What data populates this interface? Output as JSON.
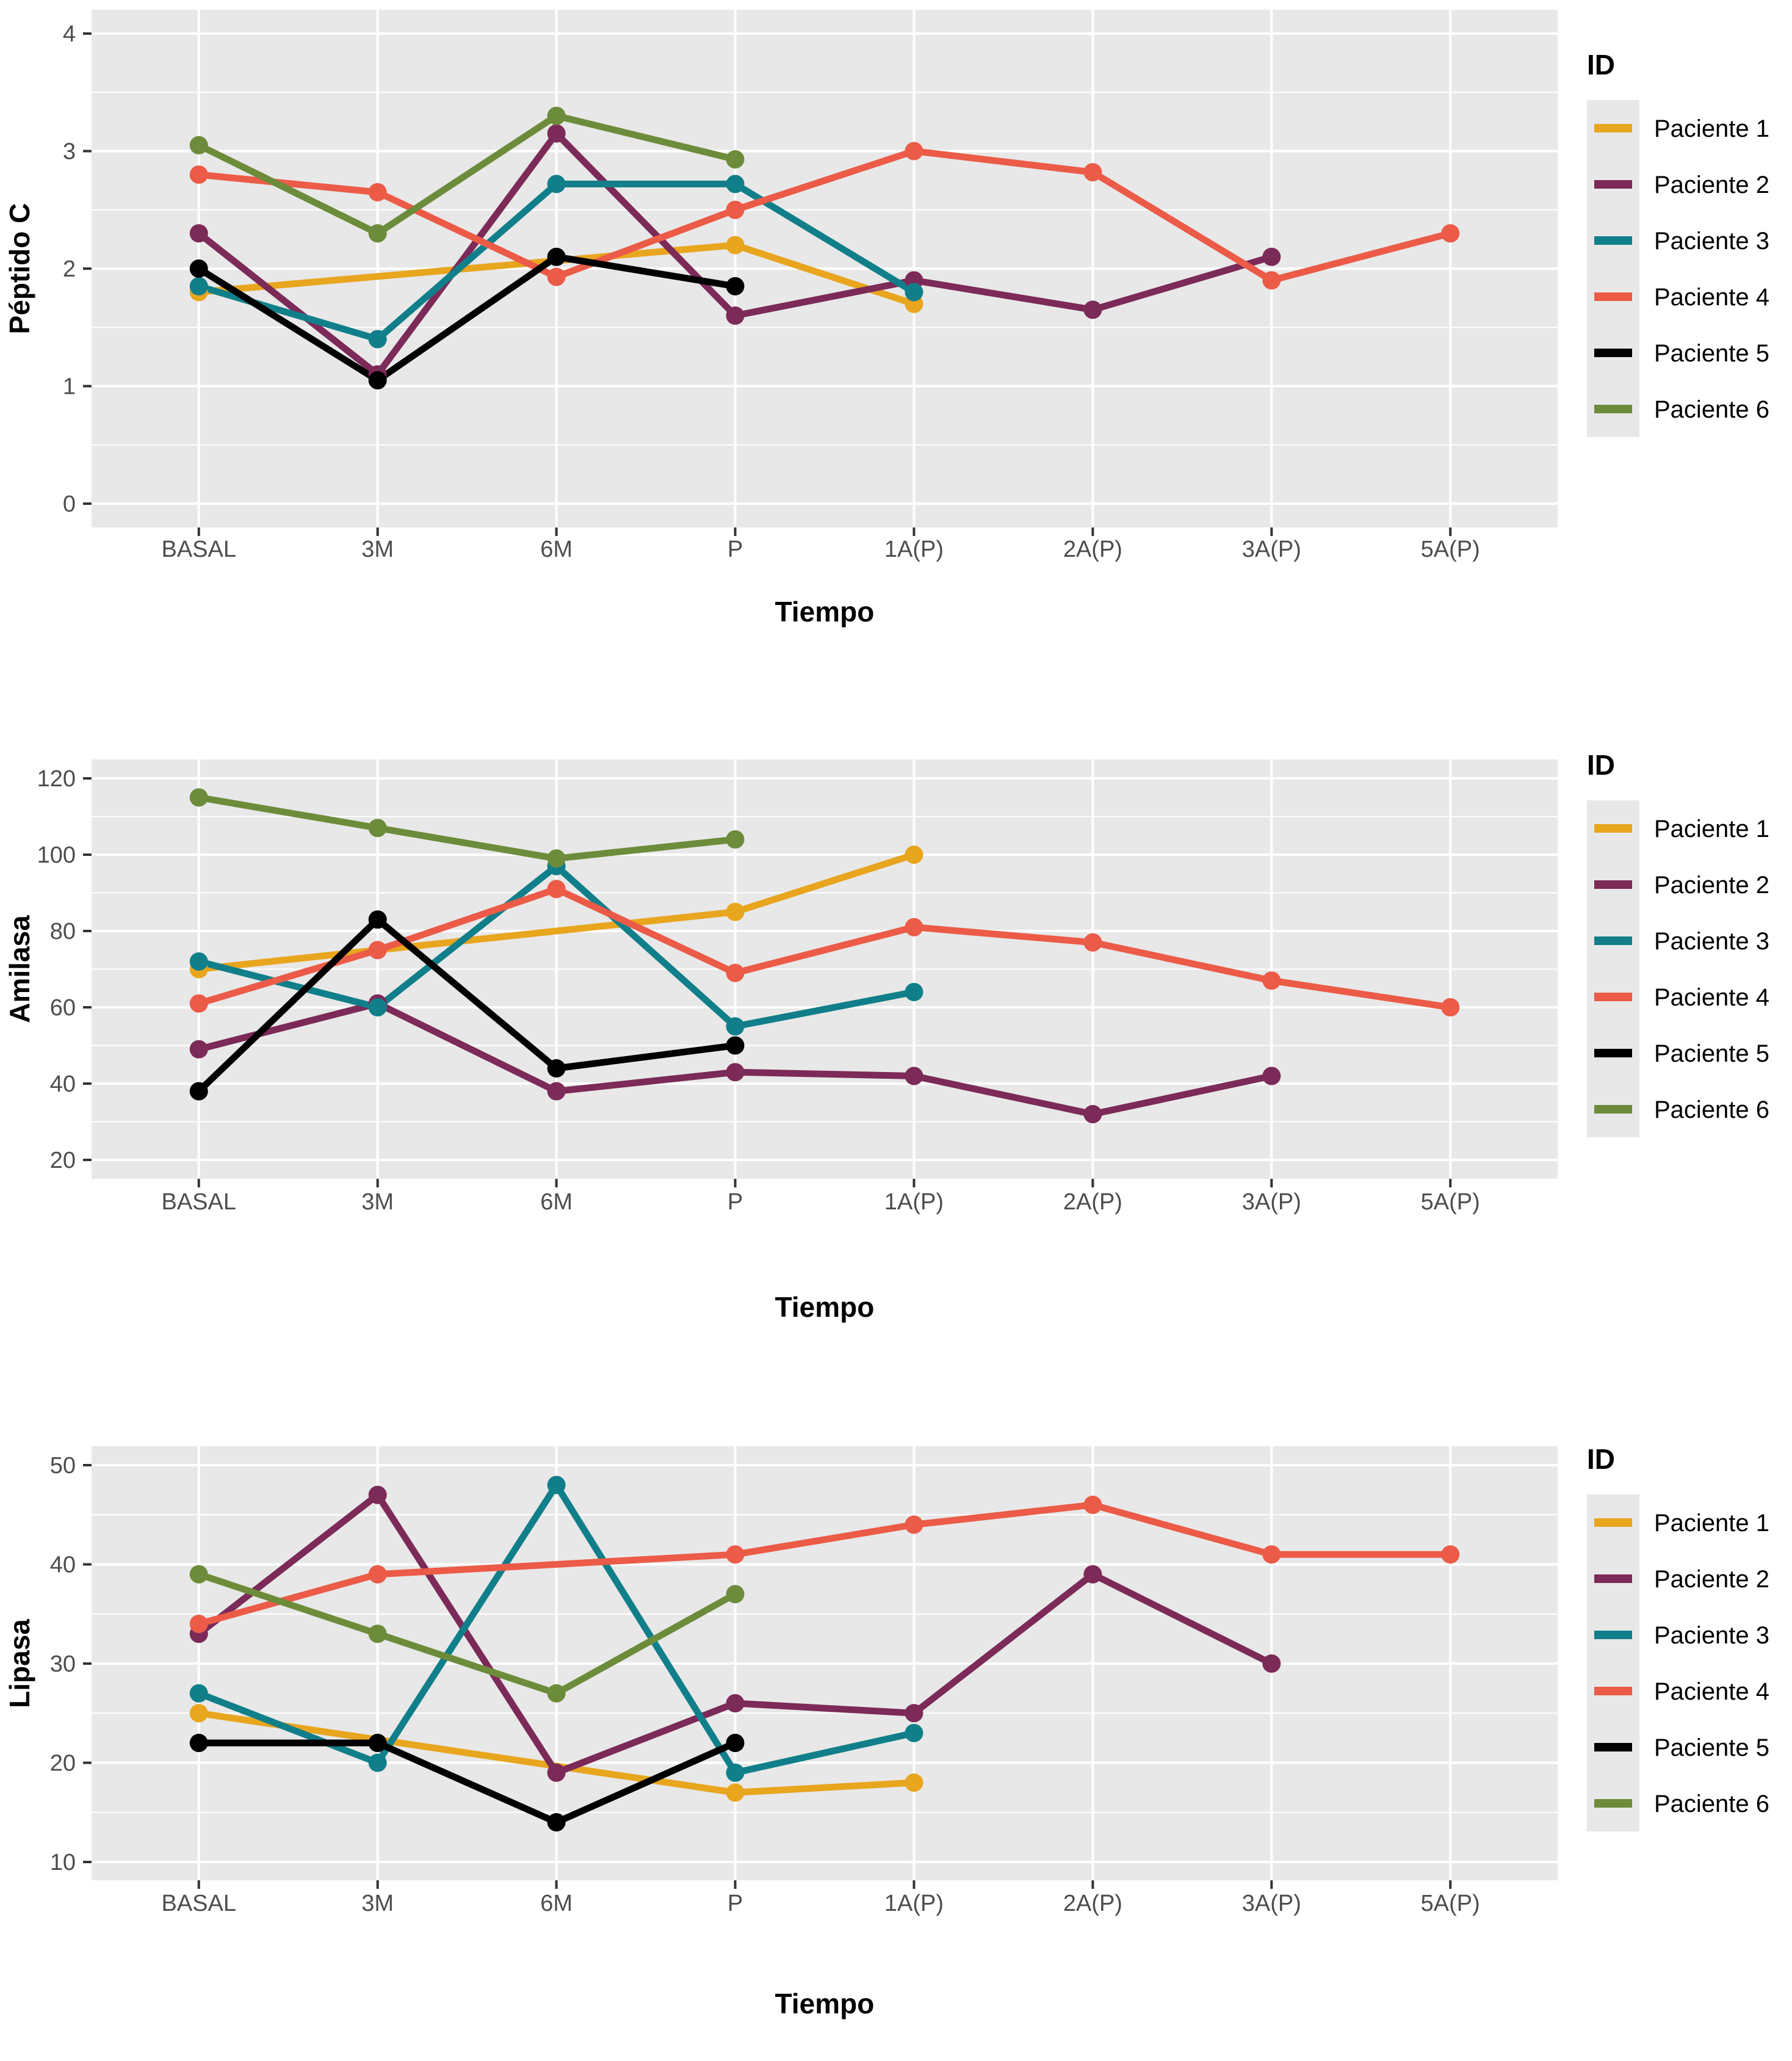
{
  "page": {
    "background": "#FFFFFF"
  },
  "style": {
    "panel_background": "#E8E8E8",
    "grid_color": "#FFFFFF",
    "tick_label_color": "#4D4D4D",
    "axis_title_color": "#000000",
    "legend_key_background": "#E8E8E8"
  },
  "chart_data": [
    {
      "type": "line",
      "title": "",
      "ylabel": "Péptido C",
      "xlabel": "Tiempo",
      "legend_title": "ID",
      "legend_position": "right",
      "grid": "major+minor",
      "categories": [
        "BASAL",
        "3M",
        "6M",
        "P",
        "1A(P)",
        "2A(P)",
        "3A(P)",
        "5A(P)"
      ],
      "ylim": [
        0,
        4
      ],
      "yticks": [
        0,
        1,
        2,
        3,
        4
      ],
      "series": [
        {
          "name": "Paciente 1",
          "color": "#E8A51E",
          "values": [
            1.8,
            null,
            null,
            2.2,
            1.7,
            null,
            null,
            null
          ]
        },
        {
          "name": "Paciente 2",
          "color": "#7C2A58",
          "values": [
            2.3,
            1.1,
            3.15,
            1.6,
            1.9,
            1.65,
            2.1,
            null
          ]
        },
        {
          "name": "Paciente 3",
          "color": "#117F8A",
          "values": [
            1.85,
            1.4,
            2.72,
            2.72,
            1.8,
            null,
            null,
            null
          ]
        },
        {
          "name": "Paciente 4",
          "color": "#EB5B47",
          "values": [
            2.8,
            2.65,
            1.93,
            2.5,
            3.0,
            2.82,
            1.9,
            2.3
          ]
        },
        {
          "name": "Paciente 5",
          "color": "#000000",
          "values": [
            2.0,
            1.05,
            2.1,
            1.85,
            null,
            null,
            null,
            null
          ]
        },
        {
          "name": "Paciente 6",
          "color": "#6D8C3B",
          "values": [
            3.05,
            2.3,
            3.3,
            2.93,
            null,
            null,
            null,
            null
          ]
        }
      ]
    },
    {
      "type": "line",
      "title": "",
      "ylabel": "Amilasa",
      "xlabel": "Tiempo",
      "legend_title": "ID",
      "legend_position": "right",
      "grid": "major+minor",
      "categories": [
        "BASAL",
        "3M",
        "6M",
        "P",
        "1A(P)",
        "2A(P)",
        "3A(P)",
        "5A(P)"
      ],
      "ylim": [
        20,
        120
      ],
      "yticks": [
        20,
        40,
        60,
        80,
        100,
        120
      ],
      "series": [
        {
          "name": "Paciente 1",
          "color": "#E8A51E",
          "values": [
            70,
            null,
            null,
            85,
            100,
            null,
            null,
            null
          ]
        },
        {
          "name": "Paciente 2",
          "color": "#7C2A58",
          "values": [
            49,
            61,
            38,
            43,
            42,
            32,
            42,
            null
          ]
        },
        {
          "name": "Paciente 3",
          "color": "#117F8A",
          "values": [
            72,
            60,
            97,
            55,
            64,
            null,
            null,
            null
          ]
        },
        {
          "name": "Paciente 4",
          "color": "#EB5B47",
          "values": [
            61,
            75,
            91,
            69,
            81,
            77,
            67,
            60
          ]
        },
        {
          "name": "Paciente 5",
          "color": "#000000",
          "values": [
            38,
            83,
            44,
            50,
            null,
            null,
            null,
            null
          ]
        },
        {
          "name": "Paciente 6",
          "color": "#6D8C3B",
          "values": [
            115,
            107,
            99,
            104,
            null,
            null,
            null,
            null
          ]
        }
      ]
    },
    {
      "type": "line",
      "title": "",
      "ylabel": "Lipasa",
      "xlabel": "Tiempo",
      "legend_title": "ID",
      "legend_position": "right",
      "grid": "major+minor",
      "categories": [
        "BASAL",
        "3M",
        "6M",
        "P",
        "1A(P)",
        "2A(P)",
        "3A(P)",
        "5A(P)"
      ],
      "ylim": [
        10,
        50
      ],
      "yticks": [
        10,
        20,
        30,
        40,
        50
      ],
      "series": [
        {
          "name": "Paciente 1",
          "color": "#E8A51E",
          "values": [
            25,
            null,
            null,
            17,
            18,
            null,
            null,
            null
          ]
        },
        {
          "name": "Paciente 2",
          "color": "#7C2A58",
          "values": [
            33,
            47,
            19,
            26,
            25,
            39,
            30,
            null
          ]
        },
        {
          "name": "Paciente 3",
          "color": "#117F8A",
          "values": [
            27,
            20,
            48,
            19,
            23,
            null,
            null,
            null
          ]
        },
        {
          "name": "Paciente 4",
          "color": "#EB5B47",
          "values": [
            34,
            39,
            null,
            41,
            44,
            46,
            41,
            41
          ]
        },
        {
          "name": "Paciente 5",
          "color": "#000000",
          "values": [
            22,
            22,
            14,
            22,
            null,
            null,
            null,
            null
          ]
        },
        {
          "name": "Paciente 6",
          "color": "#6D8C3B",
          "values": [
            39,
            33,
            27,
            37,
            null,
            null,
            null,
            null
          ]
        }
      ]
    }
  ]
}
